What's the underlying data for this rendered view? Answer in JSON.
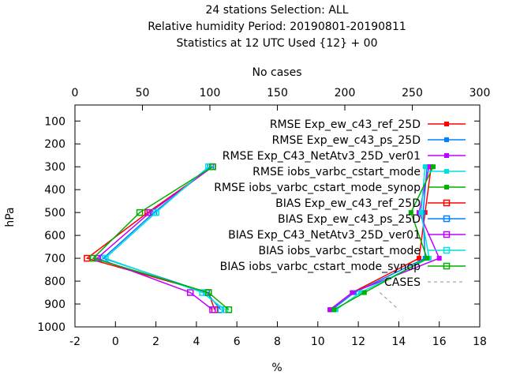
{
  "chart_data": {
    "type": "line",
    "title_lines": [
      "24 stations Selection: ALL",
      "Relative humidity  Period: 20190801-20190811",
      "Statistics at 12 UTC  Used {12} + 00"
    ],
    "xlabel": "%",
    "ylabel": "hPa",
    "x2label": "No cases",
    "xlim": [
      -2,
      18
    ],
    "ylim": [
      1000,
      30
    ],
    "x2lim": [
      0,
      300
    ],
    "xticks": [
      "-2",
      "0",
      "2",
      "4",
      "6",
      "8",
      "10",
      "12",
      "14",
      "16",
      "18"
    ],
    "yticks": [
      "100",
      "200",
      "300",
      "400",
      "500",
      "600",
      "700",
      "800",
      "900",
      "1000"
    ],
    "x2ticks": [
      "0",
      "50",
      "100",
      "150",
      "200",
      "250",
      "300"
    ],
    "grid": false,
    "legend_position": "top-right",
    "levels_hPa": [
      300,
      500,
      700,
      850,
      925
    ],
    "series": [
      {
        "name": "RMSE Exp_ew_c43_ref_25D",
        "color": "#ff0000",
        "marker": "filled-square",
        "values": [
          15.6,
          15.3,
          15.0,
          11.7,
          10.6
        ]
      },
      {
        "name": "RMSE Exp_ew_c43_ps_25D",
        "color": "#0080ff",
        "marker": "filled-square",
        "values": [
          15.4,
          15.2,
          15.3,
          11.8,
          10.7
        ]
      },
      {
        "name": "RMSE Exp_C43_NetAtv3_25D_ver01",
        "color": "#c000ff",
        "marker": "filled-square",
        "values": [
          15.5,
          15.0,
          16.0,
          11.7,
          10.6
        ]
      },
      {
        "name": "RMSE iobs_varbc_cstart_mode",
        "color": "#00e0e0",
        "marker": "filled-square",
        "values": [
          15.3,
          15.1,
          15.5,
          12.1,
          10.9
        ]
      },
      {
        "name": "RMSE iobs_varbc_cstart_mode_synop",
        "color": "#00b000",
        "marker": "filled-square",
        "values": [
          15.7,
          14.6,
          15.4,
          12.3,
          10.8
        ]
      },
      {
        "name": "BIAS Exp_ew_c43_ref_25D",
        "color": "#ff0000",
        "marker": "open-square",
        "values": [
          4.8,
          1.6,
          -1.4,
          4.6,
          4.9
        ]
      },
      {
        "name": "BIAS Exp_ew_c43_ps_25D",
        "color": "#0080ff",
        "marker": "open-square",
        "values": [
          4.7,
          1.9,
          -0.6,
          4.5,
          5.2
        ]
      },
      {
        "name": "BIAS Exp_C43_NetAtv3_25D_ver01",
        "color": "#c000ff",
        "marker": "open-square",
        "values": [
          4.8,
          1.7,
          -0.9,
          3.7,
          4.8
        ]
      },
      {
        "name": "BIAS iobs_varbc_cstart_mode",
        "color": "#00e0e0",
        "marker": "open-square",
        "values": [
          4.6,
          2.0,
          -0.5,
          4.3,
          5.4
        ]
      },
      {
        "name": "BIAS iobs_varbc_cstart_mode_synop",
        "color": "#00b000",
        "marker": "open-square",
        "values": [
          4.8,
          1.2,
          -1.1,
          4.6,
          5.6
        ]
      }
    ],
    "cases": {
      "name": "CASES",
      "color": "#909090",
      "style": "dashed",
      "levels_hPa": [
        850,
        925
      ],
      "values": [
        226,
        240
      ]
    }
  }
}
